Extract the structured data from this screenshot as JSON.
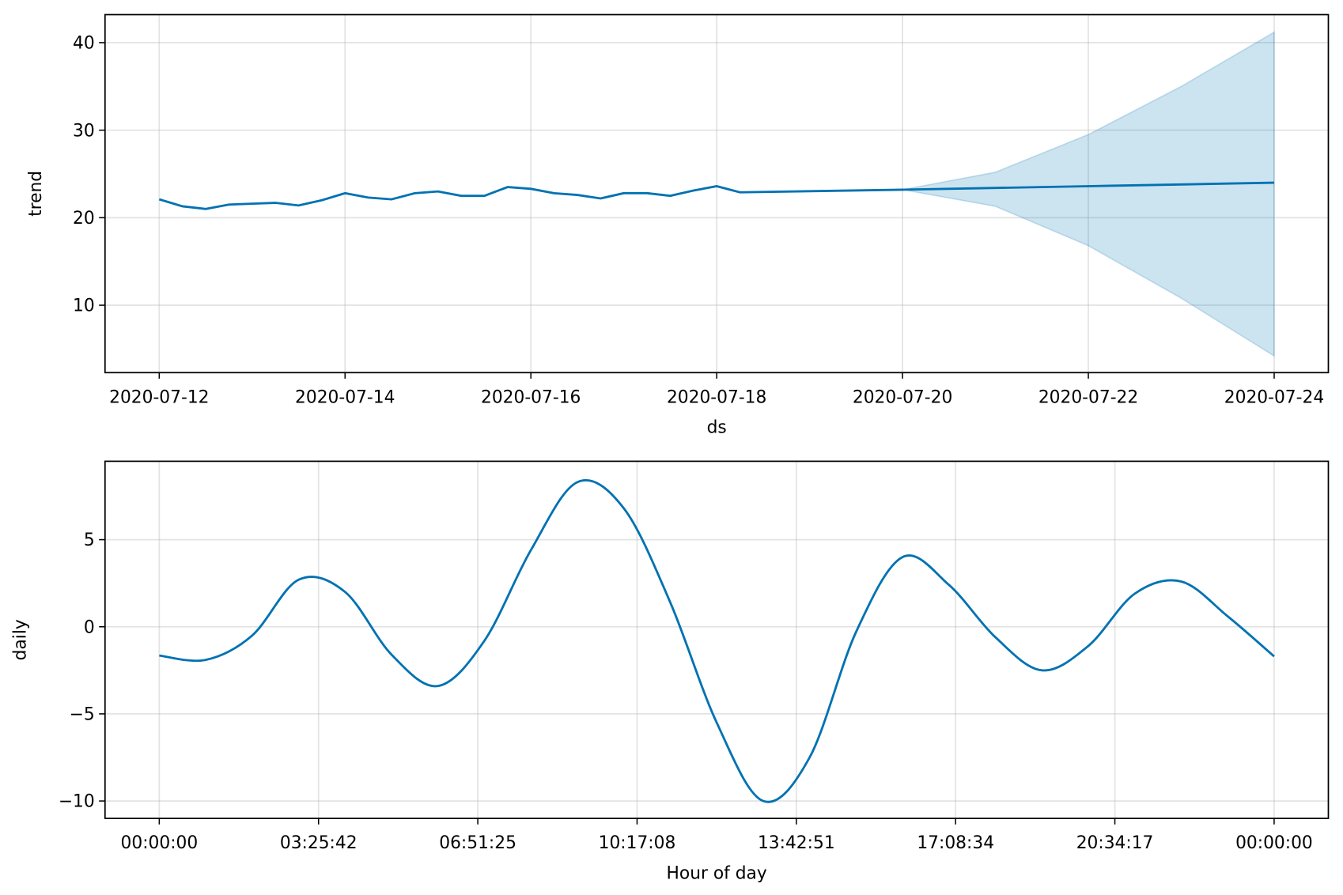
{
  "chart_data": [
    {
      "type": "line",
      "xscale": "time",
      "xlabel": "ds",
      "ylabel": "trend",
      "color": "#0072B2",
      "grid": true,
      "x": [
        "2020-07-12 00:00",
        "2020-07-12 06:00",
        "2020-07-12 12:00",
        "2020-07-12 18:00",
        "2020-07-13 00:00",
        "2020-07-13 06:00",
        "2020-07-13 12:00",
        "2020-07-13 18:00",
        "2020-07-14 00:00",
        "2020-07-14 06:00",
        "2020-07-14 12:00",
        "2020-07-14 18:00",
        "2020-07-15 00:00",
        "2020-07-15 06:00",
        "2020-07-15 12:00",
        "2020-07-15 18:00",
        "2020-07-16 00:00",
        "2020-07-16 06:00",
        "2020-07-16 12:00",
        "2020-07-16 18:00",
        "2020-07-17 00:00",
        "2020-07-17 06:00",
        "2020-07-17 12:00",
        "2020-07-17 18:00",
        "2020-07-18 00:00",
        "2020-07-18 06:00",
        "2020-07-20 00:00",
        "2020-07-21 00:00",
        "2020-07-22 00:00",
        "2020-07-23 00:00",
        "2020-07-24 00:00"
      ],
      "values": [
        22.1,
        21.3,
        21.0,
        21.5,
        21.6,
        21.7,
        21.4,
        22.0,
        22.8,
        22.3,
        22.1,
        22.8,
        23.0,
        22.5,
        22.5,
        23.5,
        23.3,
        22.8,
        22.6,
        22.2,
        22.8,
        22.8,
        22.5,
        23.1,
        23.6,
        22.9,
        23.2,
        23.4,
        23.6,
        23.8,
        24.0
      ],
      "lower": [
        null,
        null,
        null,
        null,
        null,
        null,
        null,
        null,
        null,
        null,
        null,
        null,
        null,
        null,
        null,
        null,
        null,
        null,
        null,
        null,
        null,
        null,
        null,
        null,
        null,
        null,
        23.2,
        21.3,
        16.8,
        10.8,
        4.2
      ],
      "upper": [
        null,
        null,
        null,
        null,
        null,
        null,
        null,
        null,
        null,
        null,
        null,
        null,
        null,
        null,
        null,
        null,
        null,
        null,
        null,
        null,
        null,
        null,
        null,
        null,
        null,
        null,
        23.2,
        25.2,
        29.5,
        35.0,
        41.2
      ],
      "xlim": [
        "2020-07-11 10:00",
        "2020-07-24 14:00"
      ],
      "xticks": [
        "2020-07-12",
        "2020-07-14",
        "2020-07-16",
        "2020-07-18",
        "2020-07-20",
        "2020-07-22",
        "2020-07-24"
      ],
      "ylim": [
        2.3,
        43.2
      ],
      "yticks": [
        10,
        20,
        30,
        40
      ]
    },
    {
      "type": "line",
      "xscale": "linear",
      "xlabel": "Hour of day",
      "ylabel": "daily",
      "color": "#0072B2",
      "grid": true,
      "x": [
        0,
        3600,
        7200,
        10800,
        14400,
        18000,
        21600,
        25200,
        28800,
        32400,
        36000,
        39600,
        43200,
        46800,
        50400,
        54000,
        57600,
        61200,
        64800,
        68400,
        72000,
        75600,
        79200,
        82800,
        86400
      ],
      "values": [
        -1.65,
        -1.9,
        -0.5,
        2.7,
        2.0,
        -1.6,
        -3.4,
        -0.8,
        4.4,
        8.3,
        6.8,
        1.4,
        -5.5,
        -10.0,
        -7.5,
        -0.3,
        4.0,
        2.4,
        -0.6,
        -2.5,
        -1.1,
        1.9,
        2.6,
        0.6,
        -1.7
      ],
      "xlim": [
        -4203,
        90603
      ],
      "xticks": [
        {
          "value": 0,
          "label": "00:00:00"
        },
        {
          "value": 12342.857,
          "label": "03:25:42"
        },
        {
          "value": 24685.714,
          "label": "06:51:25"
        },
        {
          "value": 37028.571,
          "label": "10:17:08"
        },
        {
          "value": 49371.429,
          "label": "13:42:51"
        },
        {
          "value": 61714.286,
          "label": "17:08:34"
        },
        {
          "value": 74057.143,
          "label": "20:34:17"
        },
        {
          "value": 86400,
          "label": "00:00:00"
        }
      ],
      "ylim": [
        -11.0,
        9.5
      ],
      "yticks": [
        {
          "value": -10,
          "label": "−10"
        },
        {
          "value": -5,
          "label": "−5"
        },
        0,
        5
      ]
    }
  ]
}
